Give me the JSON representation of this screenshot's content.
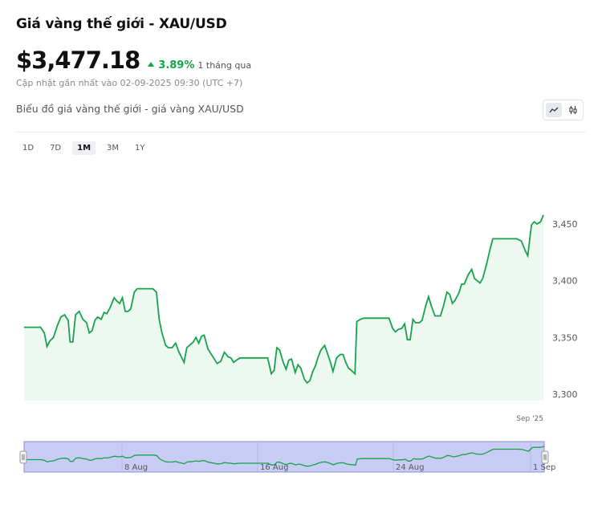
{
  "header": {
    "title": "Giá vàng thế giới - XAU/USD",
    "price": "$3,477.18",
    "change_pct": "3.89%",
    "change_period": "1 tháng qua",
    "updated": "Cập nhật gần nhất vào 02-09-2025 09:30 (UTC +7)"
  },
  "chart_header": {
    "title": "Biểu đồ giá vàng thế giới - giá vàng XAU/USD",
    "chart_type_options": [
      "line-chart-icon",
      "candlestick-icon"
    ],
    "active_chart_type": "line-chart-icon"
  },
  "ranges": [
    {
      "label": "1D",
      "active": false
    },
    {
      "label": "7D",
      "active": false
    },
    {
      "label": "1M",
      "active": true
    },
    {
      "label": "3M",
      "active": false
    },
    {
      "label": "1Y",
      "active": false
    }
  ],
  "colors": {
    "line": "#16a34a",
    "area": "#edf8f0",
    "navigator": "#c9cdf6",
    "navigator_border": "#8890c8"
  },
  "chart_data": {
    "type": "area",
    "ylim": [
      3290,
      3480
    ],
    "y_ticks": [
      3300,
      3350,
      3400,
      3450
    ],
    "y_tick_labels": [
      "3,300",
      "3,350",
      "3,400",
      "3,450"
    ],
    "x_label": "Sep '25",
    "navigator_labels": [
      "8 Aug",
      "16 Aug",
      "24 Aug",
      "1 Sep"
    ],
    "points": [
      [
        0,
        3359
      ],
      [
        0.7,
        3359
      ],
      [
        1.8,
        3359
      ],
      [
        2.2,
        3354
      ],
      [
        2.5,
        3342
      ],
      [
        2.8,
        3347
      ],
      [
        3.2,
        3350
      ],
      [
        3.6,
        3360
      ],
      [
        4.0,
        3368
      ],
      [
        4.4,
        3370
      ],
      [
        4.8,
        3365
      ],
      [
        5.0,
        3346
      ],
      [
        5.3,
        3346
      ],
      [
        5.6,
        3370
      ],
      [
        6.0,
        3373
      ],
      [
        6.4,
        3366
      ],
      [
        6.8,
        3363
      ],
      [
        7.1,
        3354
      ],
      [
        7.4,
        3356
      ],
      [
        7.7,
        3365
      ],
      [
        8.0,
        3368
      ],
      [
        8.4,
        3366
      ],
      [
        8.7,
        3372
      ],
      [
        9.0,
        3371
      ],
      [
        9.4,
        3377
      ],
      [
        9.8,
        3385
      ],
      [
        10.1,
        3382
      ],
      [
        10.4,
        3380
      ],
      [
        10.7,
        3385
      ],
      [
        11.0,
        3373
      ],
      [
        11.3,
        3373
      ],
      [
        11.6,
        3375
      ],
      [
        12.0,
        3390
      ],
      [
        12.3,
        3393
      ],
      [
        13.7,
        3393
      ],
      [
        14.0,
        3393
      ],
      [
        14.4,
        3390
      ],
      [
        14.7,
        3366
      ],
      [
        15.0,
        3354
      ],
      [
        15.4,
        3343
      ],
      [
        15.7,
        3341
      ],
      [
        16.1,
        3341
      ],
      [
        16.5,
        3345
      ],
      [
        16.8,
        3338
      ],
      [
        17.1,
        3333
      ],
      [
        17.4,
        3328
      ],
      [
        17.7,
        3341
      ],
      [
        18.0,
        3343
      ],
      [
        18.4,
        3346
      ],
      [
        18.7,
        3350
      ],
      [
        19.0,
        3345
      ],
      [
        19.3,
        3351
      ],
      [
        19.6,
        3352
      ],
      [
        20.0,
        3340
      ],
      [
        20.3,
        3336
      ],
      [
        20.7,
        3331
      ],
      [
        21.0,
        3327
      ],
      [
        21.4,
        3329
      ],
      [
        21.8,
        3337
      ],
      [
        22.2,
        3333
      ],
      [
        22.5,
        3332
      ],
      [
        22.8,
        3328
      ],
      [
        23.1,
        3330
      ],
      [
        23.5,
        3332
      ],
      [
        25.5,
        3332
      ],
      [
        26.5,
        3332
      ],
      [
        26.9,
        3318
      ],
      [
        27.2,
        3321
      ],
      [
        27.5,
        3341
      ],
      [
        27.8,
        3339
      ],
      [
        28.2,
        3328
      ],
      [
        28.5,
        3322
      ],
      [
        28.8,
        3330
      ],
      [
        29.1,
        3331
      ],
      [
        29.5,
        3319
      ],
      [
        29.8,
        3326
      ],
      [
        30.1,
        3323
      ],
      [
        30.5,
        3313
      ],
      [
        30.8,
        3310
      ],
      [
        31.1,
        3312
      ],
      [
        31.4,
        3320
      ],
      [
        31.7,
        3325
      ],
      [
        32.0,
        3333
      ],
      [
        32.3,
        3339
      ],
      [
        32.7,
        3343
      ],
      [
        33.0,
        3336
      ],
      [
        33.3,
        3329
      ],
      [
        33.6,
        3320
      ],
      [
        34.0,
        3332
      ],
      [
        34.4,
        3335
      ],
      [
        34.7,
        3335
      ],
      [
        35.0,
        3328
      ],
      [
        35.3,
        3323
      ],
      [
        35.6,
        3321
      ],
      [
        36.0,
        3318
      ],
      [
        36.2,
        3364
      ],
      [
        36.6,
        3366
      ],
      [
        37.0,
        3367
      ],
      [
        37.4,
        3367
      ],
      [
        39.4,
        3367
      ],
      [
        39.7,
        3367
      ],
      [
        40.1,
        3358
      ],
      [
        40.4,
        3355
      ],
      [
        40.7,
        3357
      ],
      [
        41.1,
        3358
      ],
      [
        41.4,
        3362
      ],
      [
        41.7,
        3348
      ],
      [
        42.0,
        3348
      ],
      [
        42.3,
        3366
      ],
      [
        42.6,
        3363
      ],
      [
        43.0,
        3363
      ],
      [
        43.3,
        3365
      ],
      [
        43.7,
        3378
      ],
      [
        44.0,
        3386
      ],
      [
        44.3,
        3378
      ],
      [
        44.7,
        3369
      ],
      [
        45.0,
        3369
      ],
      [
        45.3,
        3369
      ],
      [
        45.6,
        3377
      ],
      [
        46.0,
        3390
      ],
      [
        46.3,
        3388
      ],
      [
        46.6,
        3380
      ],
      [
        46.9,
        3383
      ],
      [
        47.3,
        3389
      ],
      [
        47.6,
        3397
      ],
      [
        47.9,
        3397
      ],
      [
        48.3,
        3405
      ],
      [
        48.7,
        3410
      ],
      [
        49.0,
        3402
      ],
      [
        49.3,
        3400
      ],
      [
        49.6,
        3398
      ],
      [
        49.9,
        3402
      ],
      [
        50.3,
        3414
      ],
      [
        50.7,
        3428
      ],
      [
        51.0,
        3437
      ],
      [
        51.4,
        3437
      ],
      [
        52.0,
        3437
      ],
      [
        53.0,
        3437
      ],
      [
        53.6,
        3437
      ],
      [
        54.1,
        3435
      ],
      [
        54.5,
        3427
      ],
      [
        54.8,
        3422
      ],
      [
        55.2,
        3449
      ],
      [
        55.5,
        3452
      ],
      [
        55.8,
        3450
      ],
      [
        56.2,
        3452
      ],
      [
        56.5,
        3458
      ]
    ]
  }
}
